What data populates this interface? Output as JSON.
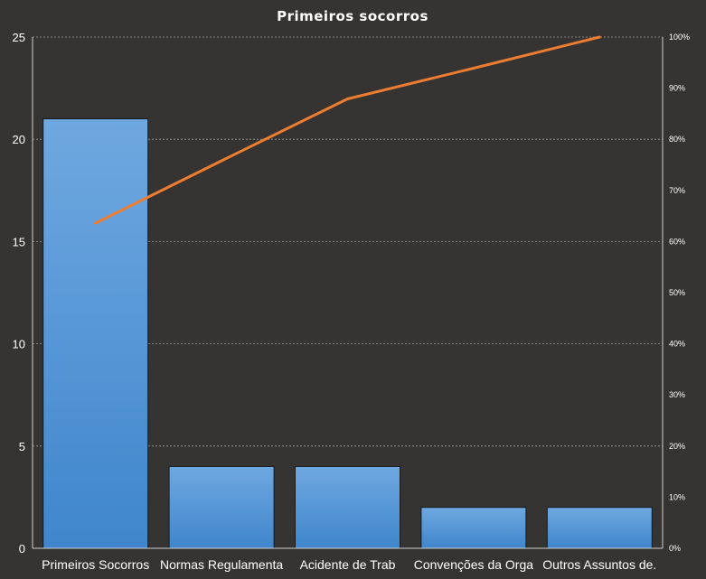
{
  "chart_data": {
    "type": "bar",
    "title": "Primeiros socorros",
    "categories": [
      "Primeiros Socorros",
      "Normas Regulamenta",
      "Acidente de Trab",
      "Convenções da Orga",
      "Outros Assuntos de."
    ],
    "values": [
      21,
      4,
      4,
      2,
      2
    ],
    "ylim": [
      0,
      25
    ],
    "yticks": [
      "0",
      "5",
      "10",
      "15",
      "20",
      "25"
    ],
    "y2ticks": [
      "0%",
      "10%",
      "20%",
      "30%",
      "40%",
      "50%",
      "60%",
      "70%",
      "80%",
      "90%",
      "100%"
    ],
    "y2lim": [
      0,
      100
    ],
    "cumulative_percent": [
      63.6,
      75.8,
      87.9,
      93.9,
      100
    ],
    "grid": true,
    "colors": {
      "bar_top": "#6fa8e0",
      "bar_bottom": "#3f86cc",
      "line": "#ed7d31",
      "background": "#363432"
    }
  }
}
